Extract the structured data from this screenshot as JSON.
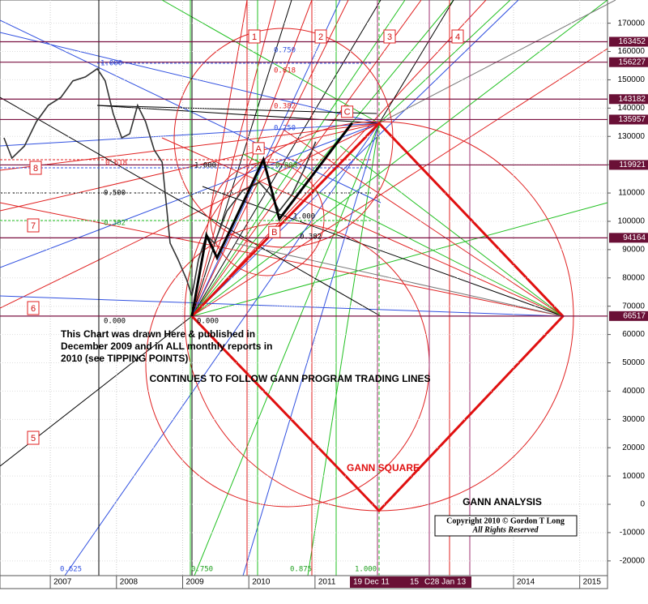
{
  "chart_data": {
    "type": "line",
    "x": [
      2006.3,
      2006.42,
      2006.61,
      2006.79,
      2006.97,
      2007.16,
      2007.34,
      2007.53,
      2007.71,
      2007.83,
      2007.95,
      2008.08,
      2008.2,
      2008.32,
      2008.44,
      2008.57,
      2008.69,
      2008.81,
      2008.93,
      2009.06,
      2009.14,
      2009.24,
      2009.36,
      2009.48,
      2009.67,
      2009.91,
      2010.16,
      2010.34,
      2010.46,
      2010.65,
      2010.83,
      2011.01
    ],
    "values": [
      129500,
      122300,
      126600,
      135200,
      141000,
      143800,
      149600,
      151000,
      153900,
      149600,
      138100,
      129500,
      130900,
      141000,
      135200,
      125200,
      120900,
      92300,
      86500,
      79400,
      73600,
      86500,
      95100,
      92300,
      103700,
      110900,
      113700,
      109000,
      103700,
      109400,
      118000,
      128100
    ],
    "color": "#333333",
    "abc": {
      "x": [
        2009.14,
        2009.36,
        2009.52,
        2010.22,
        2010.46,
        2011.56
      ],
      "values": [
        66500,
        95100,
        87100,
        121800,
        100800,
        134700
      ],
      "labels": [
        null,
        null,
        null,
        "A",
        "B",
        "C"
      ],
      "color": "#000000"
    },
    "levels": [
      163452,
      156227,
      143182,
      135957,
      119921,
      94164,
      66517
    ],
    "xlim": [
      2006.24,
      2015.42
    ],
    "xticks": [
      2007,
      2008,
      2009,
      2010,
      2011,
      2014,
      2015
    ],
    "ylim": [
      -25200,
      178200
    ],
    "yticks": [
      -20000,
      -10000,
      0,
      10000,
      20000,
      30000,
      40000,
      50000,
      60000,
      70000,
      80000,
      90000,
      100000,
      110000,
      120000,
      130000,
      140000,
      150000,
      160000,
      170000
    ],
    "date_labels": [
      "19 Dec 11",
      "15",
      "C28 Jan 13"
    ],
    "markers": [
      "1",
      "2",
      "3",
      "4",
      "5",
      "6",
      "7",
      "8"
    ],
    "fib_labels": [
      "1.000",
      "0.750",
      "0.618",
      "0.382",
      "0.250",
      "0.618",
      "1.000",
      "0.500",
      "0.382",
      "0.000",
      "0.000",
      "0.800",
      "1.000",
      "0.382",
      "0.625",
      "0.750",
      "0.875",
      "1.000"
    ],
    "annotation": [
      "This Chart was drawn Here & published in",
      "December 2009 and in ALL monthly reports in",
      "2010 (see TIPPING POINTS)"
    ],
    "headline": "CONTINUES TO FOLLOW GANN PROGRAM TRADING LINES",
    "square_label": "GANN SQUARE",
    "analysis_label": "GANN ANALYSIS",
    "copyright": [
      "Copyright 2010 © Gordon T Long",
      "All Rights Reserved"
    ],
    "grid": true
  }
}
